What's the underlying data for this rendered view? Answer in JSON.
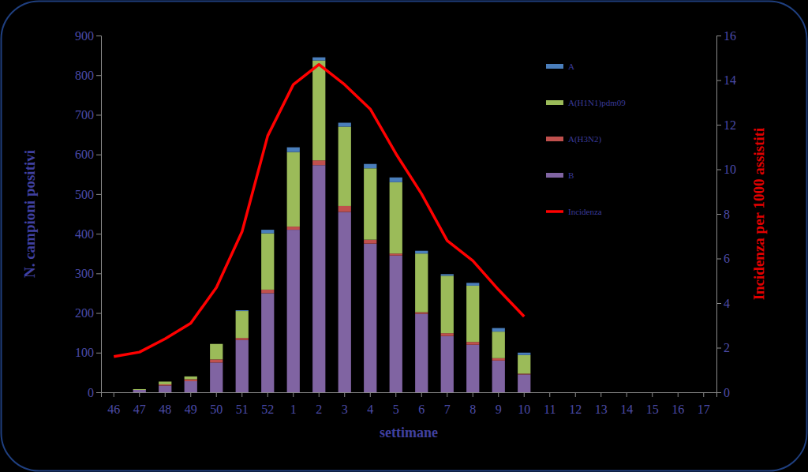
{
  "chart_data": {
    "type": "bar",
    "stacked": true,
    "legend": "upper right",
    "x_label": "settimane",
    "y_label": "N. campioni positivi",
    "y2_label": "Incidenza per 1000 assistiti",
    "categories": [
      "46",
      "47",
      "48",
      "49",
      "50",
      "51",
      "52",
      "1",
      "2",
      "3",
      "4",
      "5",
      "6",
      "7",
      "8",
      "9",
      "10",
      "11",
      "12",
      "13",
      "14",
      "15",
      "16",
      "17"
    ],
    "ylim": [
      0,
      900
    ],
    "yticks": [
      0,
      100,
      200,
      300,
      400,
      500,
      600,
      700,
      800,
      900
    ],
    "y2lim": [
      0,
      16
    ],
    "y2ticks": [
      0,
      2,
      4,
      6,
      8,
      10,
      12,
      14,
      16
    ],
    "series": [
      {
        "name": "A",
        "color": "#4a7ebb",
        "type": "bar",
        "values": [
          0,
          0,
          0,
          0,
          0,
          2,
          9,
          12,
          8,
          10,
          11,
          12,
          7,
          4,
          7,
          9,
          6,
          null,
          null,
          null,
          null,
          null,
          null,
          null
        ]
      },
      {
        "name": "A(H1N1)pdm09",
        "color": "#9bbb59",
        "type": "bar",
        "values": [
          0,
          2,
          7,
          7,
          39,
          68,
          142,
          188,
          252,
          200,
          180,
          180,
          148,
          145,
          142,
          67,
          47,
          null,
          null,
          null,
          null,
          null,
          null,
          null
        ]
      },
      {
        "name": "A(H3N2)",
        "color": "#c0504d",
        "type": "bar",
        "values": [
          0,
          0,
          3,
          5,
          8,
          5,
          9,
          8,
          12,
          15,
          10,
          5,
          4,
          7,
          7,
          6,
          2,
          null,
          null,
          null,
          null,
          null,
          null,
          null
        ]
      },
      {
        "name": "B",
        "color": "#8064a2",
        "type": "bar",
        "values": [
          0,
          6,
          17,
          28,
          75,
          132,
          250,
          410,
          573,
          455,
          375,
          345,
          198,
          142,
          120,
          80,
          45,
          null,
          null,
          null,
          null,
          null,
          null,
          null
        ]
      },
      {
        "name": "Incidenza",
        "color": "#ff0000",
        "type": "line",
        "axis": "y2",
        "values": [
          1.6,
          1.8,
          2.4,
          3.1,
          4.7,
          7.2,
          11.5,
          13.8,
          14.7,
          13.8,
          12.7,
          10.7,
          8.9,
          6.8,
          5.9,
          4.6,
          3.4,
          null,
          null,
          null,
          null,
          null,
          null,
          null
        ]
      }
    ]
  }
}
